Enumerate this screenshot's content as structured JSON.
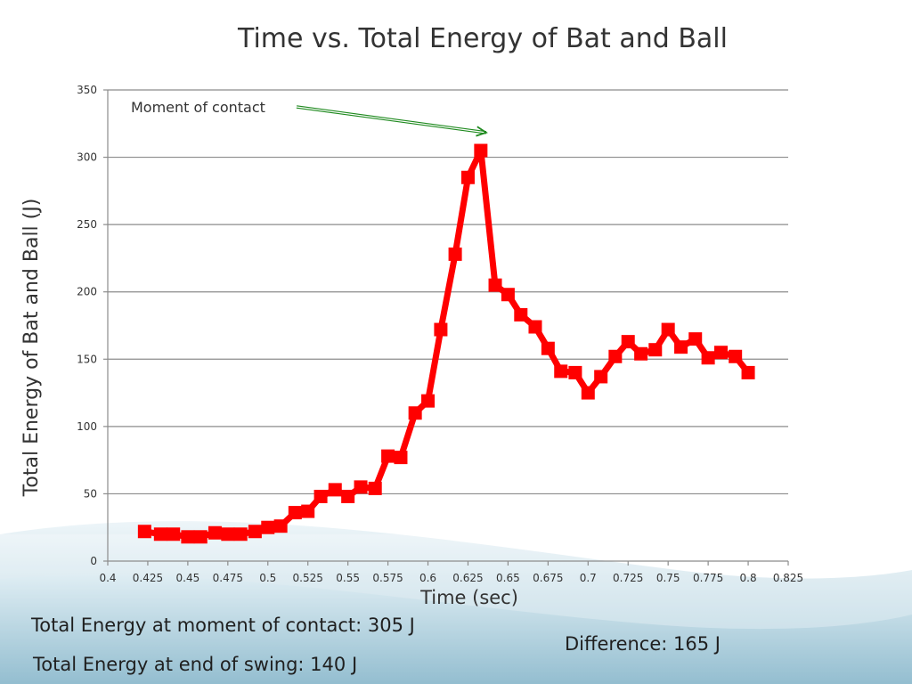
{
  "chart_data": {
    "type": "line",
    "title": "Time vs. Total Energy of Bat and Ball",
    "xlabel": "Time (sec)",
    "ylabel": "Total Energy of Bat and Ball (J)",
    "xlim": [
      0.4,
      0.825
    ],
    "ylim": [
      0,
      350
    ],
    "x_ticks": [
      "0.4",
      "0.425",
      "0.45",
      "0.475",
      "0.5",
      "0.525",
      "0.55",
      "0.575",
      "0.6",
      "0.625",
      "0.65",
      "0.675",
      "0.7",
      "0.725",
      "0.75",
      "0.775",
      "0.8",
      "0.825"
    ],
    "y_ticks": [
      "0",
      "50",
      "100",
      "150",
      "200",
      "250",
      "300",
      "350"
    ],
    "grid": true,
    "legend": "none",
    "series": [
      {
        "color": "#ff0000",
        "marker": "square",
        "x": [
          0.423,
          0.433,
          0.441,
          0.45,
          0.458,
          0.467,
          0.475,
          0.483,
          0.492,
          0.5,
          0.508,
          0.517,
          0.525,
          0.533,
          0.542,
          0.55,
          0.558,
          0.567,
          0.575,
          0.583,
          0.592,
          0.6,
          0.608,
          0.617,
          0.625,
          0.633,
          0.642,
          0.65,
          0.658,
          0.667,
          0.675,
          0.683,
          0.692,
          0.7,
          0.708,
          0.717,
          0.725,
          0.733,
          0.742,
          0.75,
          0.758,
          0.767,
          0.775,
          0.783,
          0.792,
          0.8
        ],
        "y": [
          22,
          20,
          20,
          18,
          18,
          21,
          20,
          20,
          22,
          25,
          26,
          36,
          37,
          48,
          53,
          48,
          55,
          54,
          78,
          77,
          110,
          119,
          172,
          228,
          285,
          305,
          205,
          198,
          183,
          174,
          158,
          141,
          140,
          125,
          137,
          152,
          163,
          154,
          157,
          172,
          159,
          165,
          151,
          155,
          152,
          140
        ]
      }
    ],
    "annotations": [
      {
        "text": "Moment of contact",
        "x": 0.633,
        "y": 317,
        "color": "#1f8a1f"
      }
    ]
  },
  "notes": {
    "contact": "Total Energy at moment of contact: 305 J",
    "end": "Total Energy at end of swing: 140 J",
    "difference": "Difference: 165 J"
  }
}
